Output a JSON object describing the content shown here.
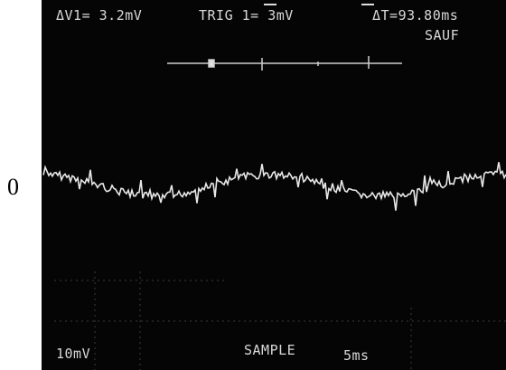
{
  "screen": {
    "top_left": "ΔV1= 3.2mV",
    "top_center": "TRIG 1= 3mV",
    "top_right": "ΔT=93.80ms",
    "mode": "SAUF",
    "bottom_left": "10mV",
    "bottom_center": "SAMPLE",
    "bottom_right": "5ms"
  },
  "zero_label": "0"
}
